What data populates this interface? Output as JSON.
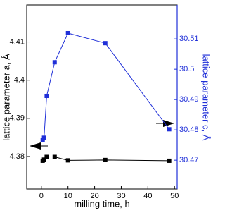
{
  "chart_data": {
    "type": "line",
    "x_label": "milling time, h",
    "y_label": "lattice parameter a, Å",
    "y2_label": "lattice parameter c, Å",
    "xlim": [
      -5.5,
      51
    ],
    "xticks": [
      0,
      10,
      20,
      30,
      40,
      50
    ],
    "ylim": [
      4.3715,
      4.4197
    ],
    "yticks": [
      4.38,
      4.39,
      4.4,
      4.41
    ],
    "y2lim": [
      30.4605,
      30.5212
    ],
    "y2ticks": [
      30.47,
      30.48,
      30.49,
      30.5,
      30.51
    ],
    "series": [
      {
        "name": "a",
        "color": "#000000",
        "x": [
          0.5,
          1,
          2,
          5,
          10,
          24,
          48
        ],
        "values": [
          4.3789,
          4.3792,
          4.3799,
          4.3799,
          4.379,
          4.3791,
          4.3789
        ]
      },
      {
        "name": "c",
        "color": "#1f2fd8",
        "axis": "y2",
        "x": [
          0.5,
          1,
          2,
          5,
          10,
          24,
          48
        ],
        "values": [
          30.4767,
          30.4774,
          30.4912,
          30.5023,
          30.5119,
          30.5086,
          30.4802
        ]
      }
    ]
  }
}
